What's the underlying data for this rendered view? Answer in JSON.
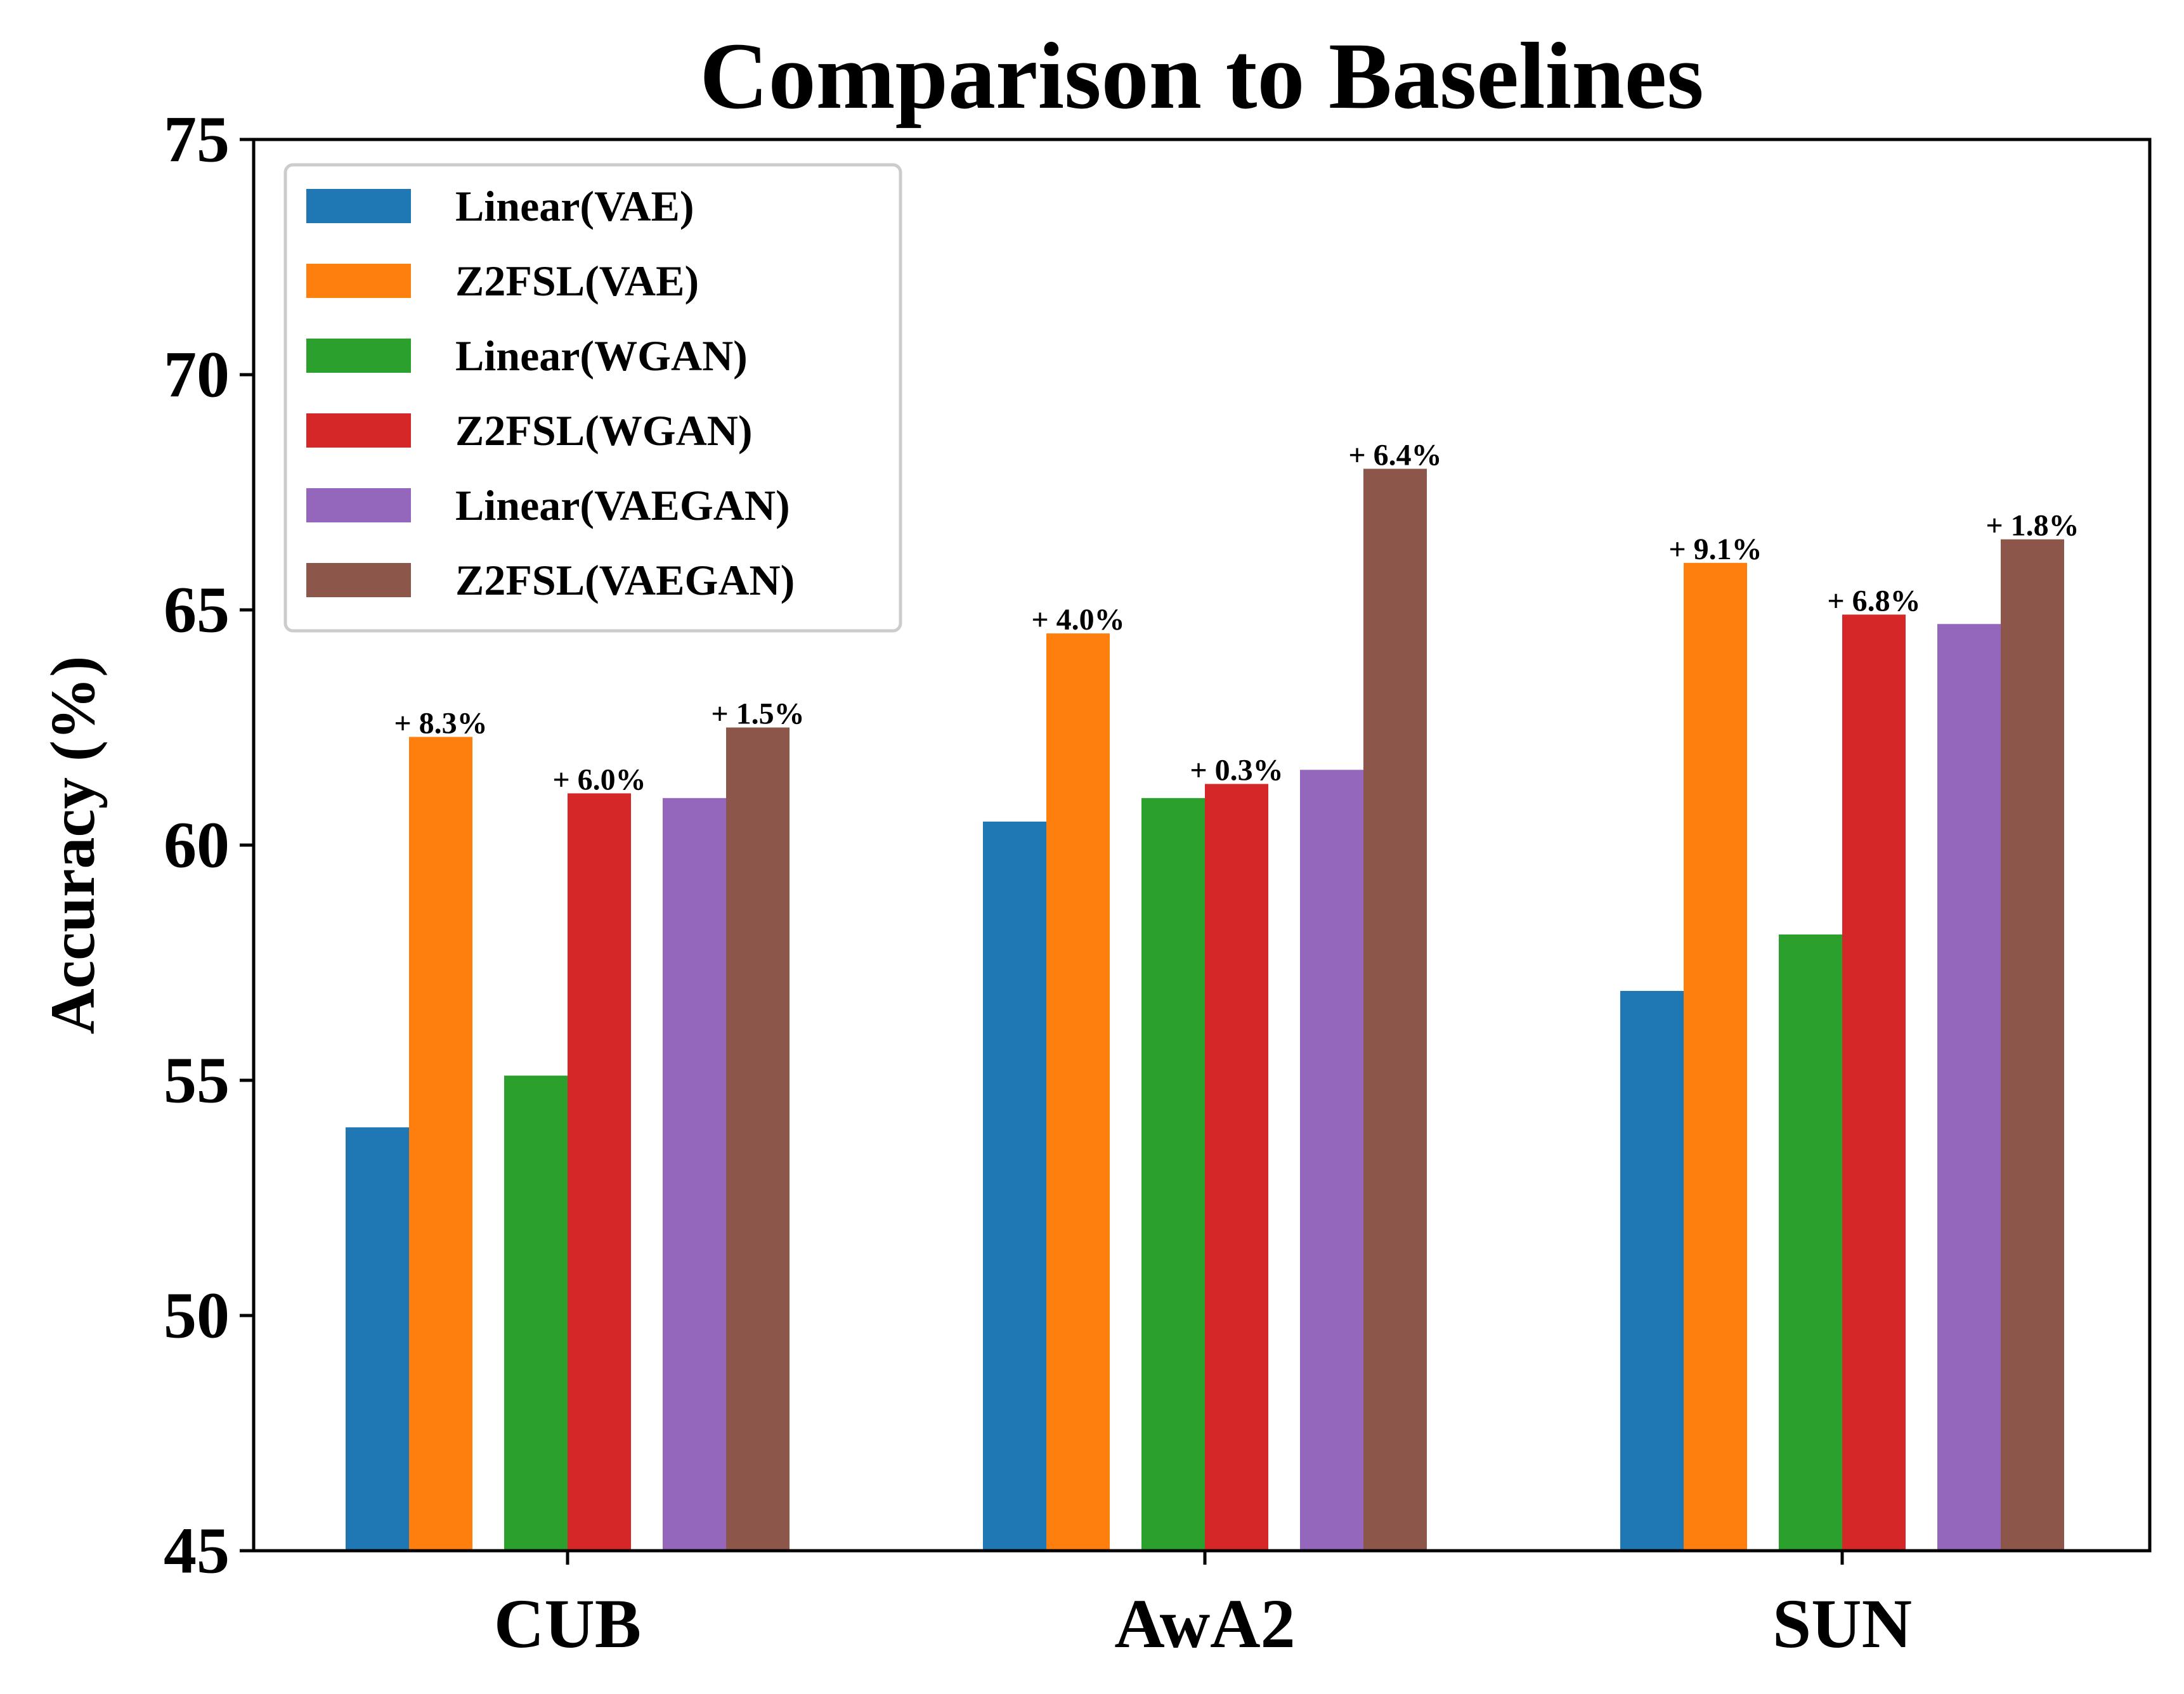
{
  "chart_data": {
    "type": "bar",
    "title": "Comparison to Baselines",
    "xlabel": "",
    "ylabel": "Accuracy (%)",
    "ylim": [
      45,
      75
    ],
    "yticks": [
      "45",
      "50",
      "55",
      "60",
      "65",
      "70",
      "75"
    ],
    "categories": [
      "CUB",
      "AwA2",
      "SUN"
    ],
    "legend_position": "top-left",
    "series": [
      {
        "name": "Linear(VAE)",
        "color": "#1f77b4",
        "values": [
          54.0,
          60.5,
          56.9
        ]
      },
      {
        "name": "Z2FSL(VAE)",
        "color": "#ff7f0e",
        "values": [
          62.3,
          64.5,
          66.0
        ]
      },
      {
        "name": "Linear(WGAN)",
        "color": "#2ca02c",
        "values": [
          55.1,
          61.0,
          58.1
        ]
      },
      {
        "name": "Z2FSL(WGAN)",
        "color": "#d62728",
        "values": [
          61.1,
          61.3,
          64.9
        ]
      },
      {
        "name": "Linear(VAEGAN)",
        "color": "#9467bd",
        "values": [
          61.0,
          61.6,
          64.7
        ]
      },
      {
        "name": "Z2FSL(VAEGAN)",
        "color": "#8c564b",
        "values": [
          62.5,
          68.0,
          66.5
        ]
      }
    ],
    "annotations": [
      {
        "series": 1,
        "category": 0,
        "text": "+ 8.3%"
      },
      {
        "series": 3,
        "category": 0,
        "text": "+ 6.0%"
      },
      {
        "series": 5,
        "category": 0,
        "text": "+ 1.5%"
      },
      {
        "series": 1,
        "category": 1,
        "text": "+ 4.0%"
      },
      {
        "series": 3,
        "category": 1,
        "text": "+ 0.3%"
      },
      {
        "series": 5,
        "category": 1,
        "text": "+ 6.4%"
      },
      {
        "series": 1,
        "category": 2,
        "text": "+ 9.1%"
      },
      {
        "series": 3,
        "category": 2,
        "text": "+ 6.8%"
      },
      {
        "series": 5,
        "category": 2,
        "text": "+ 1.8%"
      }
    ]
  }
}
